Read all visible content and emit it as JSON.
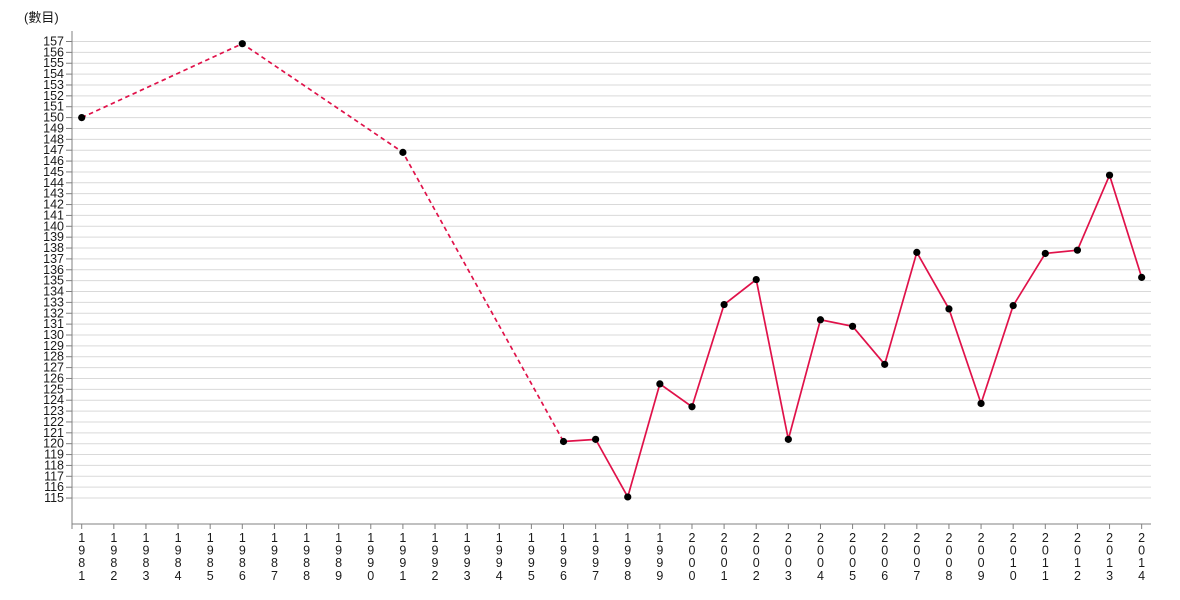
{
  "title": "(數目)",
  "chart_data": {
    "type": "line",
    "title": "(數目)",
    "ylabel": "(數目)",
    "xlabel": "",
    "legend": "none",
    "grid": "horizontal",
    "ylim": [
      115,
      157
    ],
    "y_tick_step": 1,
    "y_ticks": [
      157,
      156,
      155,
      154,
      153,
      152,
      151,
      150,
      149,
      148,
      147,
      146,
      145,
      144,
      143,
      142,
      141,
      140,
      139,
      138,
      137,
      136,
      135,
      134,
      133,
      132,
      131,
      130,
      129,
      128,
      127,
      126,
      125,
      124,
      123,
      122,
      121,
      120,
      119,
      118,
      117,
      116,
      115
    ],
    "x_ticks": [
      "1981",
      "1982",
      "1983",
      "1984",
      "1985",
      "1986",
      "1987",
      "1988",
      "1989",
      "1990",
      "1991",
      "1992",
      "1993",
      "1994",
      "1995",
      "1996",
      "1997",
      "1998",
      "1999",
      "2000",
      "2001",
      "2002",
      "2003",
      "2004",
      "2005",
      "2006",
      "2007",
      "2008",
      "2009",
      "2010",
      "2011",
      "2012",
      "2013",
      "2014"
    ],
    "series": [
      {
        "name": "數目",
        "marker": "black-circle",
        "dashed_segment_years": [
          1981,
          1986,
          1991,
          1996
        ],
        "solid_from_year": 1996,
        "points": [
          [
            1981,
            150.0
          ],
          [
            1986,
            156.8
          ],
          [
            1991,
            146.8
          ],
          [
            1996,
            120.2
          ],
          [
            1997,
            120.4
          ],
          [
            1998,
            115.1
          ],
          [
            1999,
            125.5
          ],
          [
            2000,
            123.4
          ],
          [
            2001,
            132.8
          ],
          [
            2002,
            135.1
          ],
          [
            2003,
            120.4
          ],
          [
            2004,
            131.4
          ],
          [
            2005,
            130.8
          ],
          [
            2006,
            127.3
          ],
          [
            2007,
            137.6
          ],
          [
            2008,
            132.4
          ],
          [
            2009,
            123.7
          ],
          [
            2010,
            132.7
          ],
          [
            2011,
            137.5
          ],
          [
            2012,
            137.8
          ],
          [
            2013,
            144.7
          ],
          [
            2014,
            135.3
          ]
        ]
      }
    ],
    "colors": {
      "line": "#e0124a",
      "marker": "#000000",
      "grid": "#d9d9d9",
      "axis": "#808080",
      "tick_text": "#1a1a1a"
    }
  }
}
